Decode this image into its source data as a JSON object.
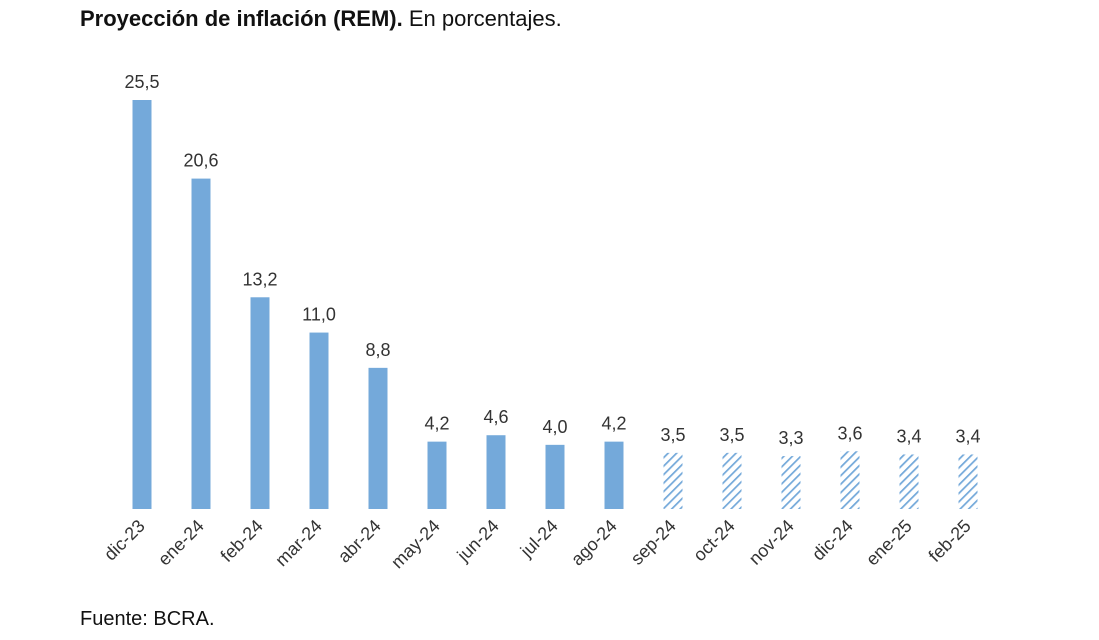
{
  "title_bold": "Proyección de inflación (REM).",
  "title_rest": " En porcentajes.",
  "source": "Fuente: BCRA.",
  "colors": {
    "bar": "#74A9DA",
    "hatch": "#74A9DA"
  },
  "chart_data": {
    "type": "bar",
    "categories": [
      "dic-23",
      "ene-24",
      "feb-24",
      "mar-24",
      "abr-24",
      "may-24",
      "jun-24",
      "jul-24",
      "ago-24",
      "sep-24",
      "oct-24",
      "nov-24",
      "dic-24",
      "ene-25",
      "feb-25"
    ],
    "values": [
      25.5,
      20.6,
      13.2,
      11.0,
      8.8,
      4.2,
      4.6,
      4.0,
      4.2,
      3.5,
      3.5,
      3.3,
      3.6,
      3.4,
      3.4
    ],
    "value_labels": [
      "25,5",
      "20,6",
      "13,2",
      "11,0",
      "8,8",
      "4,2",
      "4,6",
      "4,0",
      "4,2",
      "3,5",
      "3,5",
      "3,3",
      "3,6",
      "3,4",
      "3,4"
    ],
    "hatched_from_index": 9,
    "ylim": [
      0,
      25.5
    ],
    "grid": false,
    "legend": "none"
  }
}
